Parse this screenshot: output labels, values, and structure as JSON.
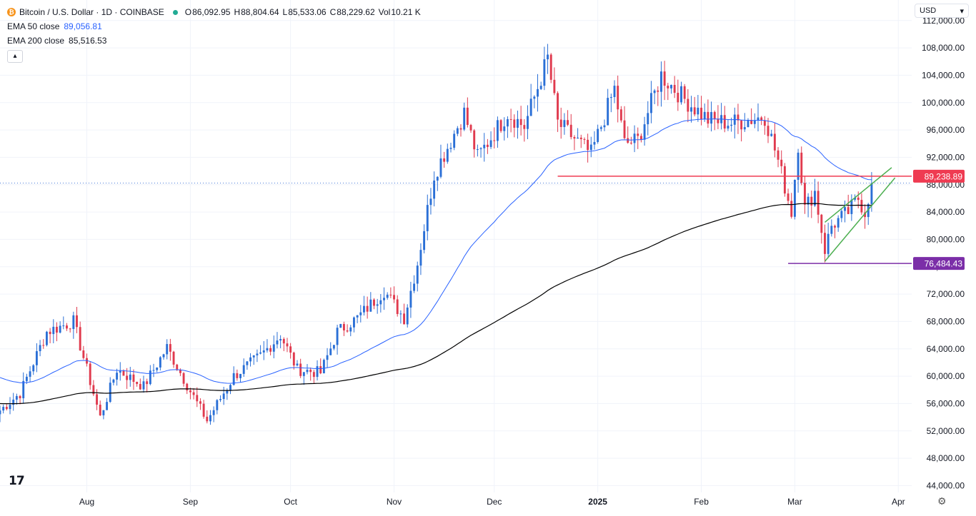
{
  "header": {
    "coin_glyph": "₿",
    "title": "Bitcoin / U.S. Dollar · 1D · COINBASE",
    "ohlc": [
      {
        "k": "O",
        "v": "86,092.95"
      },
      {
        "k": "H",
        "v": "88,804.64"
      },
      {
        "k": "L",
        "v": "85,533.06"
      },
      {
        "k": "C",
        "v": "88,229.62"
      },
      {
        "k": "Vol",
        "v": "10.21 K"
      }
    ],
    "ema50_label": "EMA 50 close",
    "ema50_value": "89,056.81",
    "ema200_label": "EMA 200 close",
    "ema200_value": "85,516.53",
    "currency": "USD"
  },
  "colors": {
    "up": "#2a6fd6",
    "down": "#e03a4e",
    "ema50": "#2962ff",
    "ema200": "#000000",
    "resistance": "#ef3b52",
    "support": "#7b2ea8",
    "channel": "#4caf50",
    "grid": "#f0f3fa",
    "price_dotted": "#4a7bd8"
  },
  "chart_data": {
    "type": "candlestick",
    "x_start": "2024-07-06",
    "x_end": "2025-04-05",
    "ylim": [
      43000,
      115000
    ],
    "y_ticks": [
      44000,
      48000,
      52000,
      56000,
      60000,
      64000,
      68000,
      72000,
      76000,
      80000,
      84000,
      88000,
      92000,
      96000,
      100000,
      104000,
      108000,
      112000
    ],
    "y_tick_labels": [
      "44,000.00",
      "48,000.00",
      "52,000.00",
      "56,000.00",
      "60,000.00",
      "64,000.00",
      "68,000.00",
      "72,000.00",
      "76,000.00",
      "80,000.00",
      "84,000.00",
      "88,000.00",
      "92,000.00",
      "96,000.00",
      "100,000.00",
      "104,000.00",
      "108,000.00",
      "112,000.00"
    ],
    "x_ticks": [
      {
        "date": "2024-08-01",
        "label": "Aug"
      },
      {
        "date": "2024-09-01",
        "label": "Sep"
      },
      {
        "date": "2024-10-01",
        "label": "Oct"
      },
      {
        "date": "2024-11-01",
        "label": "Nov"
      },
      {
        "date": "2024-12-01",
        "label": "Dec"
      },
      {
        "date": "2025-01-01",
        "label": "2025",
        "bold": true
      },
      {
        "date": "2025-02-01",
        "label": "Feb"
      },
      {
        "date": "2025-03-01",
        "label": "Mar"
      },
      {
        "date": "2025-04-01",
        "label": "Apr"
      }
    ],
    "anchors": [
      [
        "2024-07-06",
        55000
      ],
      [
        "2024-07-12",
        57500
      ],
      [
        "2024-07-20",
        66500
      ],
      [
        "2024-07-28",
        68000
      ],
      [
        "2024-08-05",
        54000
      ],
      [
        "2024-08-10",
        61000
      ],
      [
        "2024-08-18",
        58500
      ],
      [
        "2024-08-25",
        64200
      ],
      [
        "2024-09-01",
        57800
      ],
      [
        "2024-09-06",
        53500
      ],
      [
        "2024-09-14",
        60000
      ],
      [
        "2024-09-22",
        63000
      ],
      [
        "2024-09-28",
        66000
      ],
      [
        "2024-10-03",
        61000
      ],
      [
        "2024-10-10",
        60500
      ],
      [
        "2024-10-15",
        66500
      ],
      [
        "2024-10-21",
        68500
      ],
      [
        "2024-10-29",
        72500
      ],
      [
        "2024-11-04",
        68500
      ],
      [
        "2024-11-08",
        76500
      ],
      [
        "2024-11-13",
        89500
      ],
      [
        "2024-11-22",
        98500
      ],
      [
        "2024-11-26",
        92000
      ],
      [
        "2024-12-05",
        98500
      ],
      [
        "2024-12-10",
        96500
      ],
      [
        "2024-12-17",
        106500
      ],
      [
        "2024-12-20",
        97000
      ],
      [
        "2024-12-30",
        92500
      ],
      [
        "2025-01-06",
        102000
      ],
      [
        "2025-01-09",
        94000
      ],
      [
        "2025-01-13",
        94500
      ],
      [
        "2025-01-20",
        104000
      ],
      [
        "2025-01-27",
        100500
      ],
      [
        "2025-02-03",
        97500
      ],
      [
        "2025-02-10",
        97000
      ],
      [
        "2025-02-20",
        98000
      ],
      [
        "2025-02-24",
        91500
      ],
      [
        "2025-02-28",
        84000
      ],
      [
        "2025-03-02",
        94000
      ],
      [
        "2025-03-04",
        84500
      ],
      [
        "2025-03-07",
        87000
      ],
      [
        "2025-03-10",
        78500
      ],
      [
        "2025-03-12",
        82000
      ],
      [
        "2025-03-17",
        84000
      ],
      [
        "2025-03-20",
        86000
      ],
      [
        "2025-03-22",
        84000
      ],
      [
        "2025-03-24",
        88229
      ]
    ],
    "candle_count": 262,
    "ema50_last": 89056.81,
    "ema200_last": 85516.53,
    "last_close": 88229.62,
    "resistance": {
      "value": 89238.89,
      "label": "89,238.89",
      "from": "2024-12-20",
      "to": "2025-04-05"
    },
    "support": {
      "value": 76484.43,
      "label": "76,484.43",
      "from": "2025-02-27",
      "to": "2025-04-05"
    },
    "channel": {
      "upper": [
        [
          "2025-03-10",
          82500
        ],
        [
          "2025-03-30",
          90500
        ]
      ],
      "lower": [
        [
          "2025-03-10",
          76800
        ],
        [
          "2025-03-31",
          89000
        ]
      ]
    }
  }
}
